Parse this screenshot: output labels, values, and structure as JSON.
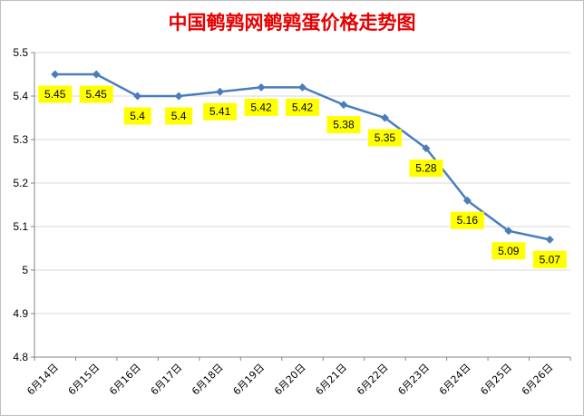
{
  "chart_data": {
    "type": "line",
    "title": "中国鹌鹑网鹌鹑蛋价格走势图",
    "xlabel": "",
    "ylabel": "",
    "categories": [
      "6月14日",
      "6月15日",
      "6月16日",
      "6月17日",
      "6月18日",
      "6月19日",
      "6月20日",
      "6月21日",
      "6月22日",
      "6月23日",
      "6月24日",
      "6月25日",
      "6月26日"
    ],
    "series": [
      {
        "values": [
          5.45,
          5.45,
          5.4,
          5.4,
          5.41,
          5.42,
          5.42,
          5.38,
          5.35,
          5.28,
          5.16,
          5.09,
          5.07
        ]
      }
    ],
    "data_labels": [
      "5.45",
      "5.45",
      "5.4",
      "5.4",
      "5.41",
      "5.42",
      "5.42",
      "5.38",
      "5.35",
      "5.28",
      "5.16",
      "5.09",
      "5.07"
    ],
    "ylim": [
      4.8,
      5.5
    ],
    "yticks": [
      4.8,
      4.9,
      5.0,
      5.1,
      5.2,
      5.3,
      5.4,
      5.5
    ],
    "ytick_labels": [
      "4.8",
      "4.9",
      "5",
      "5.1",
      "5.2",
      "5.3",
      "5.4",
      "5.5"
    ],
    "grid": true,
    "legend": "none",
    "colors": {
      "line": "#4a7ebb",
      "marker": "#4a7ebb",
      "title": "#e60000",
      "label_bg": "#ffff00",
      "grid": "#d9d9d9"
    }
  }
}
